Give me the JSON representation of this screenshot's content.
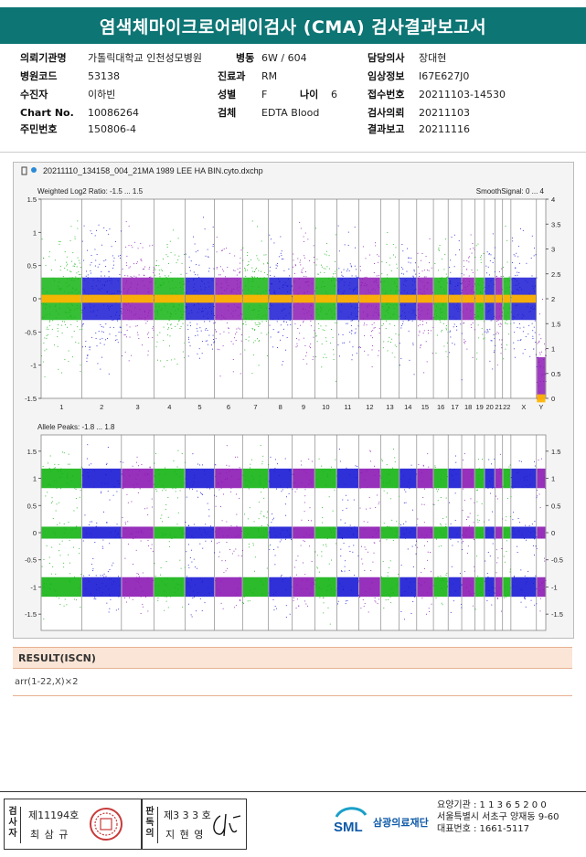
{
  "title": "염색체마이크로어레이검사 (CMA) 검사결과보고서",
  "info": {
    "institution_label": "의뢰기관명",
    "institution": "가톨릭대학교 인천성모병원",
    "ward_label": "병동",
    "ward": "6W / 604",
    "doctor_label": "담당의사",
    "doctor": "장대현",
    "hospital_code_label": "병원코드",
    "hospital_code": "53138",
    "department_label": "진료과",
    "department": "RM",
    "clinical_label": "임상정보",
    "clinical": "I67E627J0",
    "patient_label": "수진자",
    "patient": "이하빈",
    "sex_label": "성별",
    "sex": "F",
    "age_label": "나이",
    "age": "6",
    "receipt_label": "접수번호",
    "receipt": "20211103-14530",
    "chart_label": "Chart No.",
    "chart_no": "10086264",
    "specimen_label": "검체",
    "specimen": "EDTA Blood",
    "request_label": "검사의뢰",
    "request_date": "20211103",
    "id_label": "주민번호",
    "id_no": "150806-4",
    "report_label": "결과보고",
    "report_date": "20211116"
  },
  "chart_panel": {
    "file_name": "20211110_134158_004_21MA 1989 LEE HA BIN.cyto.dxchp",
    "pin_icon": "pin-icon",
    "info_icon": "marker-icon"
  },
  "chart_data": [
    {
      "type": "scatter",
      "title": "Weighted Log2 Ratio: -1.5 ... 1.5",
      "right_title": "SmoothSignal: 0 ... 4",
      "ylim": [
        -1.5,
        1.5
      ],
      "y_ticks": [
        "1.5",
        "1",
        "0.5",
        "0",
        "-0.5",
        "-1",
        "-1.5"
      ],
      "y2lim": [
        0,
        4
      ],
      "y2_ticks": [
        "4",
        "3.5",
        "3",
        "2.5",
        "2",
        "1.5",
        "1",
        "0.5",
        "0"
      ],
      "categories": [
        "1",
        "2",
        "3",
        "4",
        "5",
        "6",
        "7",
        "8",
        "9",
        "10",
        "11",
        "12",
        "13",
        "14",
        "15",
        "16",
        "17",
        "18",
        "19",
        "20",
        "21",
        "22",
        "X",
        "Y"
      ],
      "series": [
        {
          "values": [
            0,
            0,
            0,
            0,
            0,
            0,
            0,
            0,
            0,
            0,
            0,
            0,
            0,
            0,
            0,
            0,
            0,
            0,
            0,
            0,
            0,
            0,
            0,
            -1.2
          ]
        }
      ],
      "smooth_signal": [
        2,
        2,
        2,
        2,
        2,
        2,
        2,
        2,
        2,
        2,
        2,
        2,
        2,
        2,
        2,
        2,
        2,
        2,
        2,
        2,
        2,
        2,
        2,
        0
      ],
      "colors": [
        "#14b414",
        "#1a1ad4",
        "#8c1ab4"
      ],
      "smooth_color": "#ffb400"
    },
    {
      "type": "scatter",
      "title": "Allele Peaks: -1.8 ... 1.8",
      "ylim": [
        -1.8,
        1.8
      ],
      "y_ticks": [
        "1.5",
        "1",
        "0.5",
        "0",
        "-0.5",
        "-1",
        "-1.5"
      ],
      "bands": [
        1,
        0,
        -1
      ],
      "categories": [
        "1",
        "2",
        "3",
        "4",
        "5",
        "6",
        "7",
        "8",
        "9",
        "10",
        "11",
        "12",
        "13",
        "14",
        "15",
        "16",
        "17",
        "18",
        "19",
        "20",
        "21",
        "22",
        "X",
        "Y"
      ],
      "colors": [
        "#14b414",
        "#1a1ad4",
        "#8c1ab4"
      ]
    }
  ],
  "result": {
    "heading": "RESULT(ISCN)",
    "text": "arr(1-22,X)×2"
  },
  "footer": {
    "examiner_label": "검사자",
    "examiner_no": "제11194호",
    "examiner_name": "최 삼 규",
    "confirmer_label": "판독의",
    "confirmer_no": "제3 3 3 호",
    "confirmer_name": "지 현 영",
    "org_logo": "SML",
    "org_name": "삼광의료재단",
    "agency": "요양기관 : 1 1 3 6 5 2 0 0",
    "address": "서울특별시 서초구 양재동 9-60",
    "phone": "대표번호 : 1661-5117"
  }
}
